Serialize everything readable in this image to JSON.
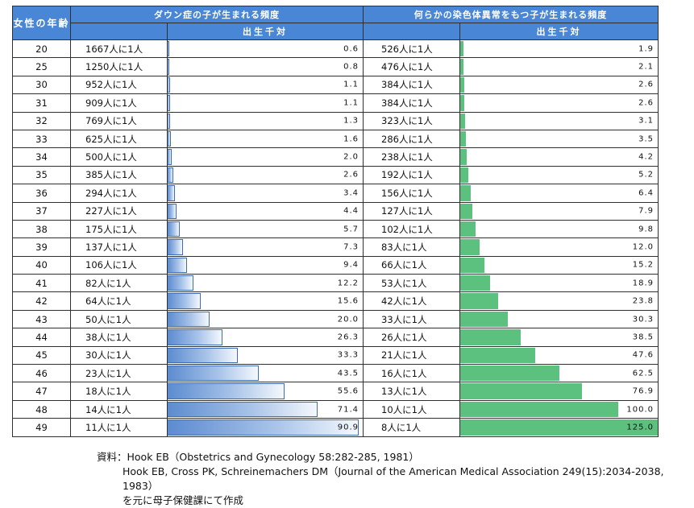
{
  "header": {
    "age_col": "女性の年齢",
    "down_title": "ダウン症の子が生まれる頻度",
    "chrom_title": "何らかの染色体異常をもつ子が生まれる頻度",
    "per_thousand": "出生千対"
  },
  "rows": [
    {
      "age": "20",
      "down_freq": "1667人に1人",
      "down_val": 0.6,
      "down_text": "0.6",
      "chrom_freq": "526人に1人",
      "chrom_val": 1.9,
      "chrom_text": "1.9"
    },
    {
      "age": "25",
      "down_freq": "1250人に1人",
      "down_val": 0.8,
      "down_text": "0.8",
      "chrom_freq": "476人に1人",
      "chrom_val": 2.1,
      "chrom_text": "2.1"
    },
    {
      "age": "30",
      "down_freq": "952人に1人",
      "down_val": 1.1,
      "down_text": "1.1",
      "chrom_freq": "384人に1人",
      "chrom_val": 2.6,
      "chrom_text": "2.6"
    },
    {
      "age": "31",
      "down_freq": "909人に1人",
      "down_val": 1.1,
      "down_text": "1.1",
      "chrom_freq": "384人に1人",
      "chrom_val": 2.6,
      "chrom_text": "2.6"
    },
    {
      "age": "32",
      "down_freq": "769人に1人",
      "down_val": 1.3,
      "down_text": "1.3",
      "chrom_freq": "323人に1人",
      "chrom_val": 3.1,
      "chrom_text": "3.1"
    },
    {
      "age": "33",
      "down_freq": "625人に1人",
      "down_val": 1.6,
      "down_text": "1.6",
      "chrom_freq": "286人に1人",
      "chrom_val": 3.5,
      "chrom_text": "3.5"
    },
    {
      "age": "34",
      "down_freq": "500人に1人",
      "down_val": 2.0,
      "down_text": "2.0",
      "chrom_freq": "238人に1人",
      "chrom_val": 4.2,
      "chrom_text": "4.2"
    },
    {
      "age": "35",
      "down_freq": "385人に1人",
      "down_val": 2.6,
      "down_text": "2.6",
      "chrom_freq": "192人に1人",
      "chrom_val": 5.2,
      "chrom_text": "5.2"
    },
    {
      "age": "36",
      "down_freq": "294人に1人",
      "down_val": 3.4,
      "down_text": "3.4",
      "chrom_freq": "156人に1人",
      "chrom_val": 6.4,
      "chrom_text": "6.4"
    },
    {
      "age": "37",
      "down_freq": "227人に1人",
      "down_val": 4.4,
      "down_text": "4.4",
      "chrom_freq": "127人に1人",
      "chrom_val": 7.9,
      "chrom_text": "7.9"
    },
    {
      "age": "38",
      "down_freq": "175人に1人",
      "down_val": 5.7,
      "down_text": "5.7",
      "chrom_freq": "102人に1人",
      "chrom_val": 9.8,
      "chrom_text": "9.8"
    },
    {
      "age": "39",
      "down_freq": "137人に1人",
      "down_val": 7.3,
      "down_text": "7.3",
      "chrom_freq": "83人に1人",
      "chrom_val": 12.0,
      "chrom_text": "12.0"
    },
    {
      "age": "40",
      "down_freq": "106人に1人",
      "down_val": 9.4,
      "down_text": "9.4",
      "chrom_freq": "66人に1人",
      "chrom_val": 15.2,
      "chrom_text": "15.2"
    },
    {
      "age": "41",
      "down_freq": "82人に1人",
      "down_val": 12.2,
      "down_text": "12.2",
      "chrom_freq": "53人に1人",
      "chrom_val": 18.9,
      "chrom_text": "18.9"
    },
    {
      "age": "42",
      "down_freq": "64人に1人",
      "down_val": 15.6,
      "down_text": "15.6",
      "chrom_freq": "42人に1人",
      "chrom_val": 23.8,
      "chrom_text": "23.8"
    },
    {
      "age": "43",
      "down_freq": "50人に1人",
      "down_val": 20.0,
      "down_text": "20.0",
      "chrom_freq": "33人に1人",
      "chrom_val": 30.3,
      "chrom_text": "30.3"
    },
    {
      "age": "44",
      "down_freq": "38人に1人",
      "down_val": 26.3,
      "down_text": "26.3",
      "chrom_freq": "26人に1人",
      "chrom_val": 38.5,
      "chrom_text": "38.5"
    },
    {
      "age": "45",
      "down_freq": "30人に1人",
      "down_val": 33.3,
      "down_text": "33.3",
      "chrom_freq": "21人に1人",
      "chrom_val": 47.6,
      "chrom_text": "47.6"
    },
    {
      "age": "46",
      "down_freq": "23人に1人",
      "down_val": 43.5,
      "down_text": "43.5",
      "chrom_freq": "16人に1人",
      "chrom_val": 62.5,
      "chrom_text": "62.5"
    },
    {
      "age": "47",
      "down_freq": "18人に1人",
      "down_val": 55.6,
      "down_text": "55.6",
      "chrom_freq": "13人に1人",
      "chrom_val": 76.9,
      "chrom_text": "76.9"
    },
    {
      "age": "48",
      "down_freq": "14人に1人",
      "down_val": 71.4,
      "down_text": "71.4",
      "chrom_freq": "10人に1人",
      "chrom_val": 100.0,
      "chrom_text": "100.0"
    },
    {
      "age": "49",
      "down_freq": "11人に1人",
      "down_val": 90.9,
      "down_text": "90.9",
      "chrom_freq": "8人に1人",
      "chrom_val": 125.0,
      "chrom_text": "125.0"
    }
  ],
  "colors": {
    "header_blue": "#4a86d6",
    "down_bar": "#5b8bd0",
    "chrom_bar": "#5cc07e"
  },
  "notes": {
    "line1": "資料：Hook EB（Obstetrics and Gynecology 58:282-285, 1981）",
    "line2": "Hook EB, Cross PK, Schreinemachers DM（Journal of the American Medical Association 249(15):2034-2038, 1983）",
    "line3": "を元に母子保健課にて作成"
  }
}
